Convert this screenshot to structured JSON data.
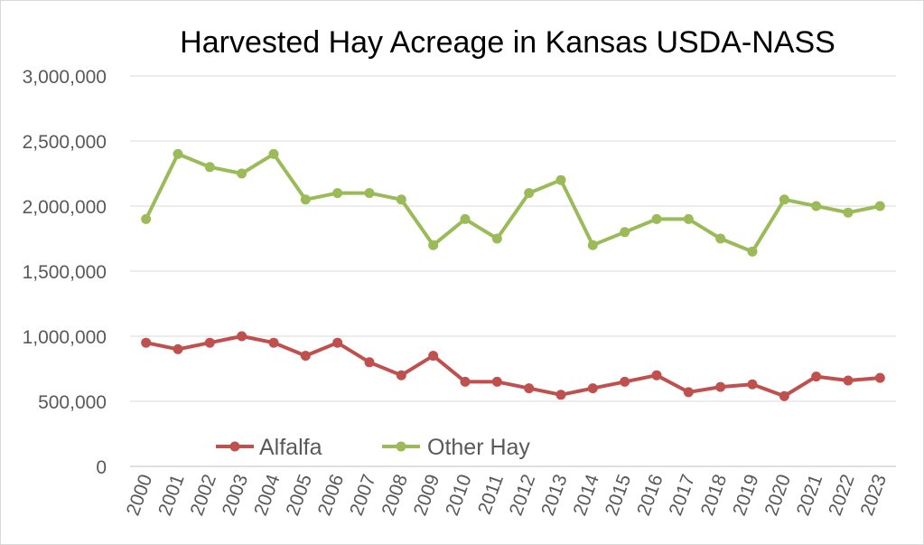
{
  "chart_data": {
    "type": "line",
    "title": "Harvested Hay Acreage in Kansas USDA-NASS",
    "xlabel": "",
    "ylabel": "",
    "x": [
      "2000",
      "2001",
      "2002",
      "2003",
      "2004",
      "2005",
      "2006",
      "2007",
      "2008",
      "2009",
      "2010",
      "2011",
      "2012",
      "2013",
      "2014",
      "2015",
      "2016",
      "2017",
      "2018",
      "2019",
      "2020",
      "2021",
      "2022",
      "2023"
    ],
    "ylim": [
      0,
      3000000
    ],
    "yticks": [
      0,
      500000,
      1000000,
      1500000,
      2000000,
      2500000,
      3000000
    ],
    "ytick_labels": [
      "0",
      "500,000",
      "1,000,000",
      "1,500,000",
      "2,000,000",
      "2,500,000",
      "3,000,000"
    ],
    "grid": true,
    "legend_position": "bottom-left inside",
    "series": [
      {
        "name": "Alfalfa",
        "color": "#C0504D",
        "values": [
          950000,
          900000,
          950000,
          1000000,
          950000,
          850000,
          950000,
          800000,
          700000,
          850000,
          650000,
          650000,
          600000,
          550000,
          600000,
          650000,
          700000,
          570000,
          610000,
          630000,
          540000,
          690000,
          660000,
          680000
        ]
      },
      {
        "name": "Other Hay",
        "color": "#9BBB59",
        "values": [
          1900000,
          2400000,
          2300000,
          2250000,
          2400000,
          2050000,
          2100000,
          2100000,
          2050000,
          1700000,
          1900000,
          1750000,
          2100000,
          2200000,
          1700000,
          1800000,
          1900000,
          1900000,
          1750000,
          1650000,
          2050000,
          2000000,
          1950000,
          2000000
        ]
      }
    ]
  }
}
